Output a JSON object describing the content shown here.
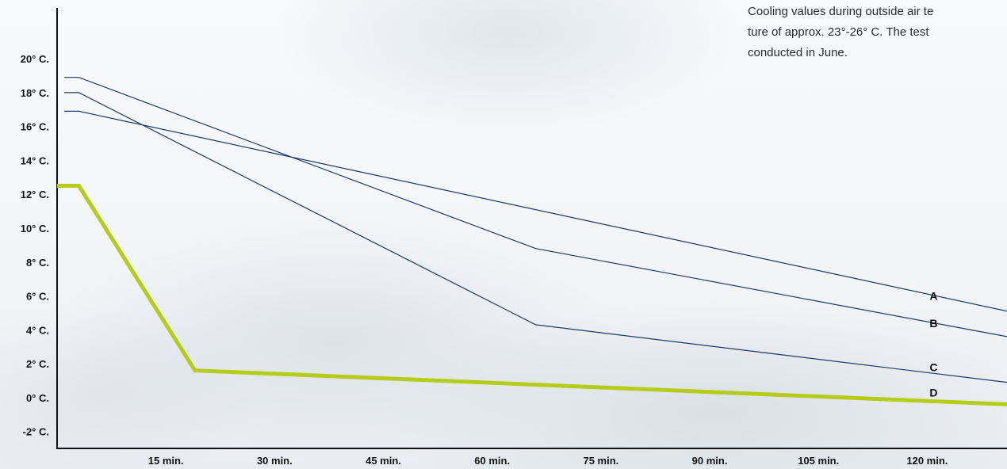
{
  "chart_data": {
    "type": "line",
    "title": "",
    "xlabel": "",
    "ylabel": "",
    "x_unit": "min.",
    "y_unit": "° C.",
    "xlim": [
      0,
      131
    ],
    "ylim": [
      -3,
      23
    ],
    "x_ticks": [
      15,
      30,
      45,
      60,
      75,
      90,
      105,
      120
    ],
    "x_tick_labels": [
      "15 min.",
      "30 min.",
      "45 min.",
      "60 min.",
      "75 min.",
      "90 min.",
      "105 min.",
      "120 min."
    ],
    "y_ticks": [
      -2,
      0,
      2,
      4,
      6,
      8,
      10,
      12,
      14,
      16,
      18,
      20
    ],
    "y_tick_labels": [
      "-2° C.",
      "0° C.",
      "2° C.",
      "4° C.",
      "6° C.",
      "8° C.",
      "10° C.",
      "12° C.",
      "14° C.",
      "16° C.",
      "18° C.",
      "20° C."
    ],
    "grid": false,
    "series": [
      {
        "name": "A",
        "color": "#1b3a6b",
        "width": 1.2,
        "x": [
          1,
          3,
          131
        ],
        "y": [
          16.9,
          16.9,
          5.1
        ]
      },
      {
        "name": "B",
        "color": "#1b3a6b",
        "width": 1.2,
        "x": [
          1,
          3,
          66,
          131
        ],
        "y": [
          18.9,
          18.9,
          8.8,
          3.6
        ]
      },
      {
        "name": "C",
        "color": "#1b3a6b",
        "width": 1.2,
        "x": [
          1,
          3,
          66,
          131
        ],
        "y": [
          18.0,
          18.0,
          4.3,
          0.9
        ]
      },
      {
        "name": "D",
        "color": "#b5cc18",
        "width": 5,
        "x": [
          0,
          3,
          19,
          131
        ],
        "y": [
          12.5,
          12.5,
          1.6,
          -0.4
        ]
      }
    ],
    "series_labels_pos": {
      "A": [
        120,
        6.0
      ],
      "B": [
        120,
        4.4
      ],
      "C": [
        120,
        1.8
      ],
      "D": [
        120,
        0.3
      ]
    }
  },
  "note": {
    "lines": [
      "Cooling values during outside air te",
      "ture of approx. 23°-26° C. The test",
      "conducted in June."
    ]
  }
}
